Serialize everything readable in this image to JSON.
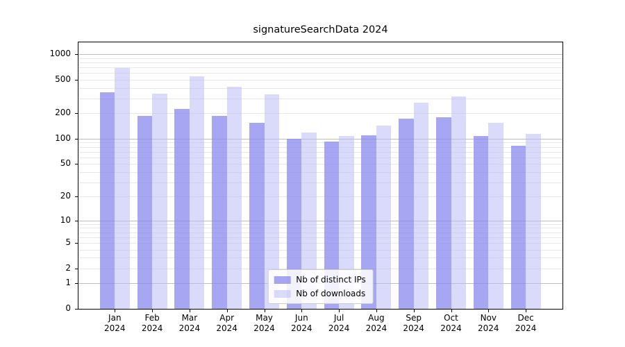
{
  "chart_data": {
    "type": "bar",
    "title": "signatureSearchData 2024",
    "categories": [
      "Jan",
      "Feb",
      "Mar",
      "Apr",
      "May",
      "Jun",
      "Jul",
      "Aug",
      "Sep",
      "Oct",
      "Nov",
      "Dec"
    ],
    "category_year": "2024",
    "series": [
      {
        "key": "distinct-ips",
        "name": "Nb of distinct IPs",
        "color": "rgba(136,136,238,0.75)",
        "values": [
          355,
          187,
          226,
          188,
          155,
          100,
          93,
          109,
          172,
          180,
          108,
          82
        ]
      },
      {
        "key": "downloads",
        "name": "Nb of downloads",
        "color": "rgba(187,187,247,0.55)",
        "values": [
          690,
          340,
          550,
          410,
          335,
          118,
          108,
          143,
          270,
          318,
          155,
          114
        ]
      }
    ],
    "yscale": "log10(value+1)",
    "yticks": [
      0,
      1,
      2,
      5,
      10,
      20,
      50,
      100,
      200,
      500,
      1000
    ],
    "ylim": [
      0,
      1380
    ],
    "grid": true,
    "legend_position": "lower center",
    "colors": {
      "major_gridline": "#bdbdbd",
      "minor_gridline": "#e7e7e7",
      "axis": "#000000",
      "background": "#ffffff"
    }
  }
}
